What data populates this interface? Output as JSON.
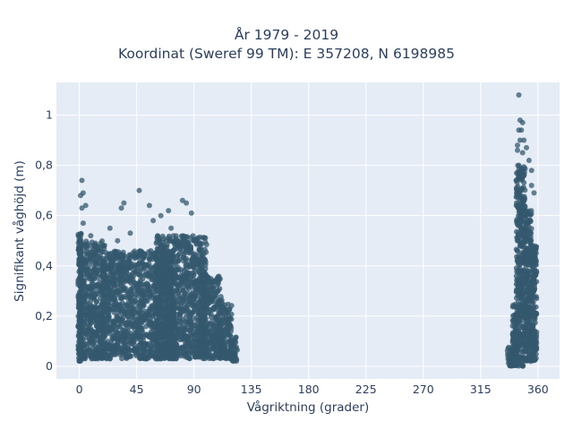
{
  "chart_data": {
    "type": "scatter",
    "title": "År 1979 - 2019",
    "subtitle": "Koordinat (Sweref 99 TM): E 357208, N 6198985",
    "xlabel": "Vågriktning (grader)",
    "ylabel": "Signifikant våghöjd (m)",
    "xlim": [
      -18,
      377
    ],
    "ylim": [
      -0.05,
      1.13
    ],
    "xticks": [
      0,
      45,
      90,
      135,
      180,
      225,
      270,
      315,
      360
    ],
    "xtick_labels": [
      "0",
      "45",
      "90",
      "135",
      "180",
      "225",
      "270",
      "315",
      "360"
    ],
    "yticks": [
      0,
      0.2,
      0.4,
      0.6,
      0.8,
      1
    ],
    "ytick_labels": [
      "0",
      "0,2",
      "0,4",
      "0,6",
      "0,8",
      "1"
    ],
    "grid": true,
    "marker_color": "#34586e",
    "background": "#e5ecf6",
    "series": [
      {
        "outliers": [
          [
            2,
            0.74
          ],
          [
            1,
            0.68
          ],
          [
            3,
            0.69
          ],
          [
            2,
            0.63
          ],
          [
            5,
            0.64
          ],
          [
            3,
            0.57
          ],
          [
            24,
            0.55
          ],
          [
            33,
            0.63
          ],
          [
            35,
            0.65
          ],
          [
            47,
            0.7
          ],
          [
            55,
            0.64
          ],
          [
            58,
            0.58
          ],
          [
            64,
            0.6
          ],
          [
            70,
            0.62
          ],
          [
            81,
            0.66
          ],
          [
            84,
            0.65
          ],
          [
            88,
            0.61
          ],
          [
            40,
            0.53
          ],
          [
            72,
            0.55
          ],
          [
            9,
            0.52
          ],
          [
            30,
            0.5
          ],
          [
            345,
            1.08
          ],
          [
            346,
            0.98
          ],
          [
            348,
            0.97
          ],
          [
            345,
            0.94
          ],
          [
            347,
            0.94
          ],
          [
            346,
            0.9
          ],
          [
            349,
            0.9
          ],
          [
            344,
            0.88
          ],
          [
            351,
            0.87
          ],
          [
            344,
            0.86
          ],
          [
            348,
            0.85
          ],
          [
            353,
            0.82
          ],
          [
            355,
            0.78
          ],
          [
            355,
            0.72
          ],
          [
            357,
            0.69
          ],
          [
            343,
            0.74
          ]
        ],
        "dense_regions": [
          {
            "x": [
              -1,
              2
            ],
            "y": [
              0.02,
              0.53
            ]
          },
          {
            "x": [
              0,
              20
            ],
            "y": [
              0.03,
              0.5
            ]
          },
          {
            "x": [
              18,
              75
            ],
            "y": [
              0.03,
              0.46
            ]
          },
          {
            "x": [
              60,
              100
            ],
            "y": [
              0.03,
              0.52
            ]
          },
          {
            "x": [
              95,
              112
            ],
            "y": [
              0.03,
              0.36
            ]
          },
          {
            "x": [
              110,
              120
            ],
            "y": [
              0.03,
              0.25
            ]
          },
          {
            "x": [
              118,
              124
            ],
            "y": [
              0.02,
              0.12
            ]
          },
          {
            "x": [
              336,
              341
            ],
            "y": [
              0.0,
              0.08
            ]
          },
          {
            "x": [
              340,
              343
            ],
            "y": [
              0.0,
              0.25
            ]
          },
          {
            "x": [
              343,
              350
            ],
            "y": [
              0.0,
              0.8
            ]
          },
          {
            "x": [
              350,
              355
            ],
            "y": [
              0.02,
              0.62
            ]
          },
          {
            "x": [
              355,
              359
            ],
            "y": [
              0.02,
              0.48
            ]
          }
        ]
      }
    ]
  }
}
